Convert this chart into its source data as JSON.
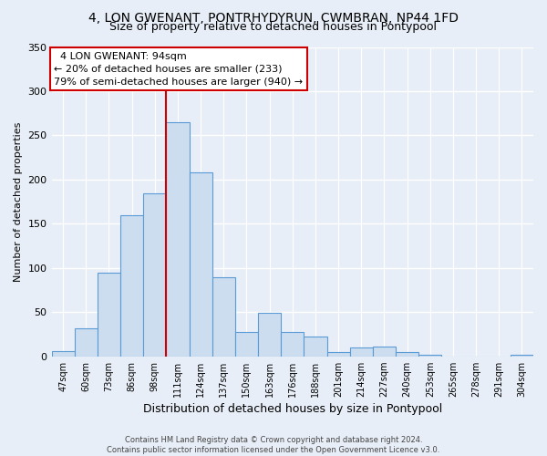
{
  "title": "4, LON GWENANT, PONTRHYDYRUN, CWMBRAN, NP44 1FD",
  "subtitle": "Size of property relative to detached houses in Pontypool",
  "xlabel": "Distribution of detached houses by size in Pontypool",
  "ylabel": "Number of detached properties",
  "bar_labels": [
    "47sqm",
    "60sqm",
    "73sqm",
    "86sqm",
    "98sqm",
    "111sqm",
    "124sqm",
    "137sqm",
    "150sqm",
    "163sqm",
    "176sqm",
    "188sqm",
    "201sqm",
    "214sqm",
    "227sqm",
    "240sqm",
    "253sqm",
    "265sqm",
    "278sqm",
    "291sqm",
    "304sqm"
  ],
  "bar_values": [
    6,
    32,
    95,
    160,
    184,
    265,
    208,
    89,
    28,
    49,
    28,
    22,
    5,
    10,
    11,
    5,
    2,
    0,
    0,
    0,
    2
  ],
  "bar_color": "#ccddf0",
  "bar_edge_color": "#5b9bd5",
  "vline_color": "#cc0000",
  "annotation_title": "4 LON GWENANT: 94sqm",
  "annotation_line1": "← 20% of detached houses are smaller (233)",
  "annotation_line2": "79% of semi-detached houses are larger (940) →",
  "annotation_box_color": "#ffffff",
  "annotation_box_edge": "#cc0000",
  "ylim": [
    0,
    350
  ],
  "yticks": [
    0,
    50,
    100,
    150,
    200,
    250,
    300,
    350
  ],
  "footer1": "Contains HM Land Registry data © Crown copyright and database right 2024.",
  "footer2": "Contains public sector information licensed under the Open Government Licence v3.0.",
  "bg_color": "#e8eef7",
  "plot_bg_color": "#e8eef7",
  "grid_color": "#ffffff",
  "title_fontsize": 10,
  "subtitle_fontsize": 9
}
